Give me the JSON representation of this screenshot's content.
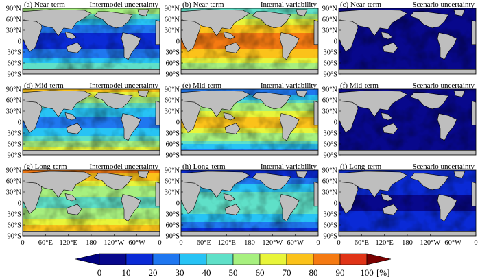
{
  "chart_data": {
    "type": "heatmap",
    "figure": "map grid",
    "rows": 3,
    "cols": 3,
    "lat_ticks": [
      "90°N",
      "60°N",
      "30°N",
      "0",
      "30°S",
      "60°S",
      "90°S"
    ],
    "lon_ticks": [
      "0",
      "60°E",
      "120°E",
      "180",
      "120°W",
      "60°W",
      "0"
    ],
    "panels": [
      {
        "label": "(a) Near-term",
        "quantity": "Intermodel uncertainty",
        "mean_percent": 25,
        "equator_percent": 12,
        "polar_percent": 60
      },
      {
        "label": "(b) Near-term",
        "quantity": "Internal variability",
        "mean_percent": 72,
        "equator_percent": 88,
        "polar_percent": 40
      },
      {
        "label": "(c) Near-term",
        "quantity": "Scenario uncertainty",
        "mean_percent": 3,
        "equator_percent": 2,
        "polar_percent": 5
      },
      {
        "label": "(d) Mid-term",
        "quantity": "Intermodel uncertainty",
        "mean_percent": 45,
        "equator_percent": 25,
        "polar_percent": 75
      },
      {
        "label": "(e) Mid-term",
        "quantity": "Internal variability",
        "mean_percent": 52,
        "equator_percent": 75,
        "polar_percent": 20
      },
      {
        "label": "(f) Mid-term",
        "quantity": "Scenario uncertainty",
        "mean_percent": 5,
        "equator_percent": 3,
        "polar_percent": 8
      },
      {
        "label": "(g) Long-term",
        "quantity": "Intermodel uncertainty",
        "mean_percent": 62,
        "equator_percent": 45,
        "polar_percent": 85
      },
      {
        "label": "(h) Long-term",
        "quantity": "Internal variability",
        "mean_percent": 22,
        "equator_percent": 50,
        "polar_percent": 8
      },
      {
        "label": "(i) Long-term",
        "quantity": "Scenario uncertainty",
        "mean_percent": 14,
        "equator_percent": 8,
        "polar_percent": 20
      }
    ],
    "colorbar": {
      "ticks": [
        "0",
        "10",
        "20",
        "30",
        "40",
        "50",
        "60",
        "70",
        "80",
        "90",
        "100"
      ],
      "unit": "[%]",
      "colors": [
        "#08088c",
        "#0a2ad6",
        "#1f77f0",
        "#27c3f5",
        "#5fe0c8",
        "#a7f07f",
        "#e8f53a",
        "#fbc21a",
        "#f57a12",
        "#e03417",
        "#8a0f0f"
      ],
      "underflow_color": "#000080",
      "overflow_color": "#7a0000"
    },
    "land_color": "#bebebe"
  }
}
